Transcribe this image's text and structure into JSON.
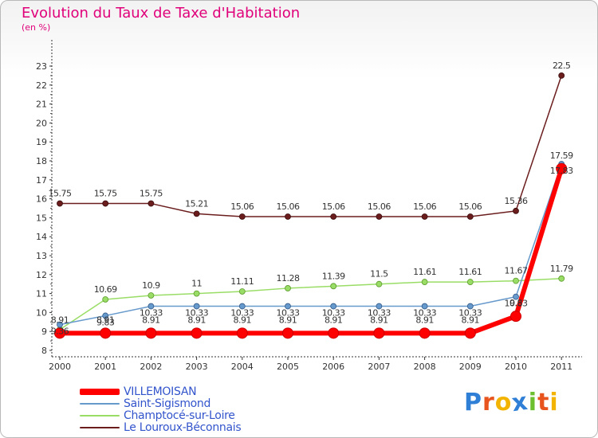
{
  "header": {
    "title": "Evolution du Taux de Taxe d'Habitation",
    "subtitle": "(en %)"
  },
  "chart_data": {
    "type": "line",
    "title": "Evolution du Taux de Taxe d'Habitation",
    "subtitle": "(en %)",
    "xlabel": "",
    "ylabel": "",
    "categories": [
      "2000",
      "2001",
      "2002",
      "2003",
      "2004",
      "2005",
      "2006",
      "2007",
      "2008",
      "2009",
      "2010",
      "2011"
    ],
    "ylim": [
      8,
      23
    ],
    "yticks": [
      "8",
      "9",
      "10",
      "11",
      "12",
      "13",
      "14",
      "15",
      "16",
      "17",
      "18",
      "19",
      "20",
      "21",
      "22",
      "23"
    ],
    "grid": false,
    "legend": "bottom-left",
    "series": [
      {
        "name": "Le Louroux-Béconnais",
        "color": "#6b1d1d",
        "values": [
          15.75,
          15.75,
          15.75,
          15.21,
          15.06,
          15.06,
          15.06,
          15.06,
          15.06,
          15.06,
          15.36,
          22.5
        ],
        "labels": [
          "15.75",
          "15.75",
          "15.75",
          "15.21",
          "15.06",
          "15.06",
          "15.06",
          "15.06",
          "15.06",
          "15.06",
          "15.36",
          "22.5"
        ]
      },
      {
        "name": "Champtocé-sur-Loire",
        "color": "#99dd66",
        "values": [
          9.1,
          10.69,
          10.9,
          11,
          11.11,
          11.28,
          11.39,
          11.5,
          11.61,
          11.61,
          11.67,
          11.79
        ],
        "labels": [
          "",
          "10.69",
          "10.9",
          "11",
          "11.11",
          "11.28",
          "11.39",
          "11.5",
          "11.61",
          "11.61",
          "11.67",
          "11.79"
        ]
      },
      {
        "name": "Saint-Sigismond",
        "color": "#6699cc",
        "values": [
          9.36,
          9.83,
          10.33,
          10.33,
          10.33,
          10.33,
          10.33,
          10.33,
          10.33,
          10.33,
          10.83,
          17.83
        ],
        "labels": [
          "9.36",
          "9.83",
          "10.33",
          "10.33",
          "10.33",
          "10.33",
          "10.33",
          "10.33",
          "10.33",
          "10.33",
          "10.83",
          "17.83"
        ]
      },
      {
        "name": "VILLEMOISAN",
        "color": "#ff0000",
        "values": [
          8.91,
          8.91,
          8.91,
          8.91,
          8.91,
          8.91,
          8.91,
          8.91,
          8.91,
          8.91,
          9.8,
          17.59
        ],
        "labels": [
          "8.91",
          "8.91",
          "8.91",
          "8.91",
          "8.91",
          "8.91",
          "8.91",
          "8.91",
          "8.91",
          "8.91",
          "9.8",
          "17.59"
        ]
      }
    ]
  },
  "legend": [
    {
      "label": "VILLEMOISAN",
      "color": "#ff0000"
    },
    {
      "label": "Saint-Sigismond",
      "color": "#6699cc"
    },
    {
      "label": "Champtocé-sur-Loire",
      "color": "#99dd66"
    },
    {
      "label": "Le Louroux-Béconnais",
      "color": "#6b1d1d"
    }
  ],
  "logo": {
    "text": "Proxiti",
    "letters": [
      {
        "char": "P",
        "color": "#2f7fd6"
      },
      {
        "char": "r",
        "color": "#e8541e"
      },
      {
        "char": "o",
        "color": "#f2b400"
      },
      {
        "char": "x",
        "color": "#2f7fd6"
      },
      {
        "char": "i",
        "color": "#6cbf2e"
      },
      {
        "char": "t",
        "color": "#e8541e"
      },
      {
        "char": "i",
        "color": "#f2b400"
      }
    ]
  }
}
